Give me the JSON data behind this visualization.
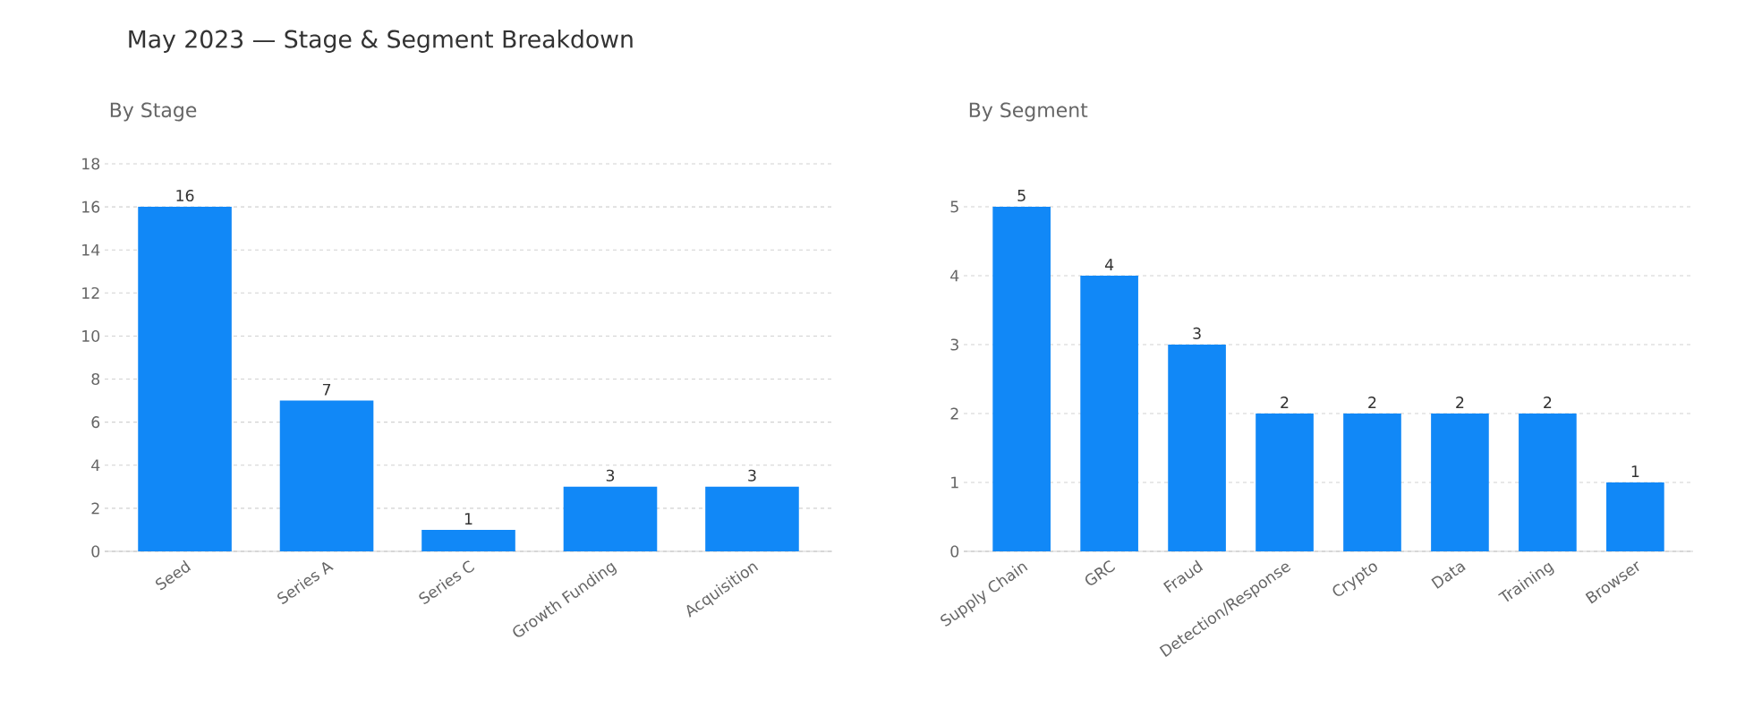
{
  "chart_data": [
    {
      "type": "bar",
      "title": "May 2023 — Stage & Segment Breakdown",
      "subtitle": "By Stage",
      "categories": [
        "Seed",
        "Series A",
        "Series C",
        "Growth Funding",
        "Acquisition"
      ],
      "values": [
        16,
        7,
        1,
        3,
        3
      ],
      "color": "#1188f7",
      "ylim": [
        0,
        18
      ],
      "yticks": [
        0,
        2,
        4,
        6,
        8,
        10,
        12,
        14,
        16,
        18
      ],
      "grid": "y",
      "data_labels": true
    },
    {
      "type": "bar",
      "subtitle": "By Segment",
      "categories": [
        "Supply Chain",
        "GRC",
        "Fraud",
        "Detection/Response",
        "Crypto",
        "Data",
        "Training",
        "Browser"
      ],
      "values": [
        5,
        4,
        3,
        2,
        2,
        2,
        2,
        1
      ],
      "color": "#1188f7",
      "ylim": [
        0,
        5
      ],
      "yticks": [
        0,
        1,
        2,
        3,
        4,
        5
      ],
      "grid": "y",
      "data_labels": true
    }
  ]
}
